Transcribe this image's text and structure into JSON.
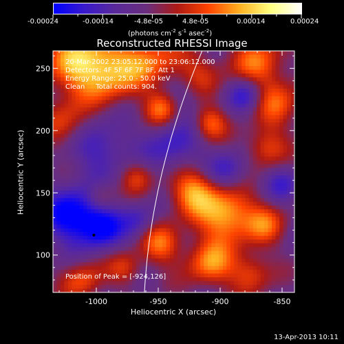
{
  "colorbar": {
    "tick_labels": [
      "-0.00024",
      "-0.00014",
      "-4.8e-05",
      "4.8e-05",
      "0.00014",
      "0.00024"
    ],
    "unit_label": "(photons cm",
    "unit_exp1": "-2",
    "unit_mid": " s",
    "unit_exp2": "-1",
    "unit_mid2": " asec",
    "unit_exp3": "-2",
    "unit_end": ")",
    "colors": [
      "#0000ff",
      "#3a1acb",
      "#5a2a9a",
      "#6a2e7e",
      "#ad1a14",
      "#ff4400",
      "#ffb020",
      "#ffff80",
      "#ffffff"
    ]
  },
  "title": "Reconstructed RHESSI Image",
  "info": {
    "time_range": "20-Mar-2002 23:05:12.000 to 23:06:12.000",
    "detectors": "Detectors: 4F 5F 6F 7F 8F, Att 1",
    "energy_range": "Energy Range: 25.0 - 50.0 keV",
    "clean": "Clean     Total counts: 904.",
    "peak": "Position of Peak = [-924,126]"
  },
  "chart_data": {
    "type": "heatmap",
    "title": "Reconstructed RHESSI Image",
    "xlabel": "Heliocentric X (arcsec)",
    "ylabel": "Heliocentric Y (arcsec)",
    "xlim": [
      -1035,
      -840
    ],
    "ylim": [
      70,
      264
    ],
    "x_ticks": [
      -1000,
      -950,
      -900,
      -850
    ],
    "y_ticks": [
      100,
      150,
      200,
      250
    ],
    "x_tick_labels": [
      "-1000",
      "-950",
      "-900",
      "-850"
    ],
    "y_tick_labels": [
      "100",
      "150",
      "200",
      "250"
    ],
    "colorbar_range": [
      -0.00024,
      0.00024
    ],
    "peak_position": [
      -924,
      126
    ],
    "limb_marker_position": [
      -1002,
      116
    ]
  },
  "footer": {
    "date": "13-Apr-2013 10:11"
  }
}
